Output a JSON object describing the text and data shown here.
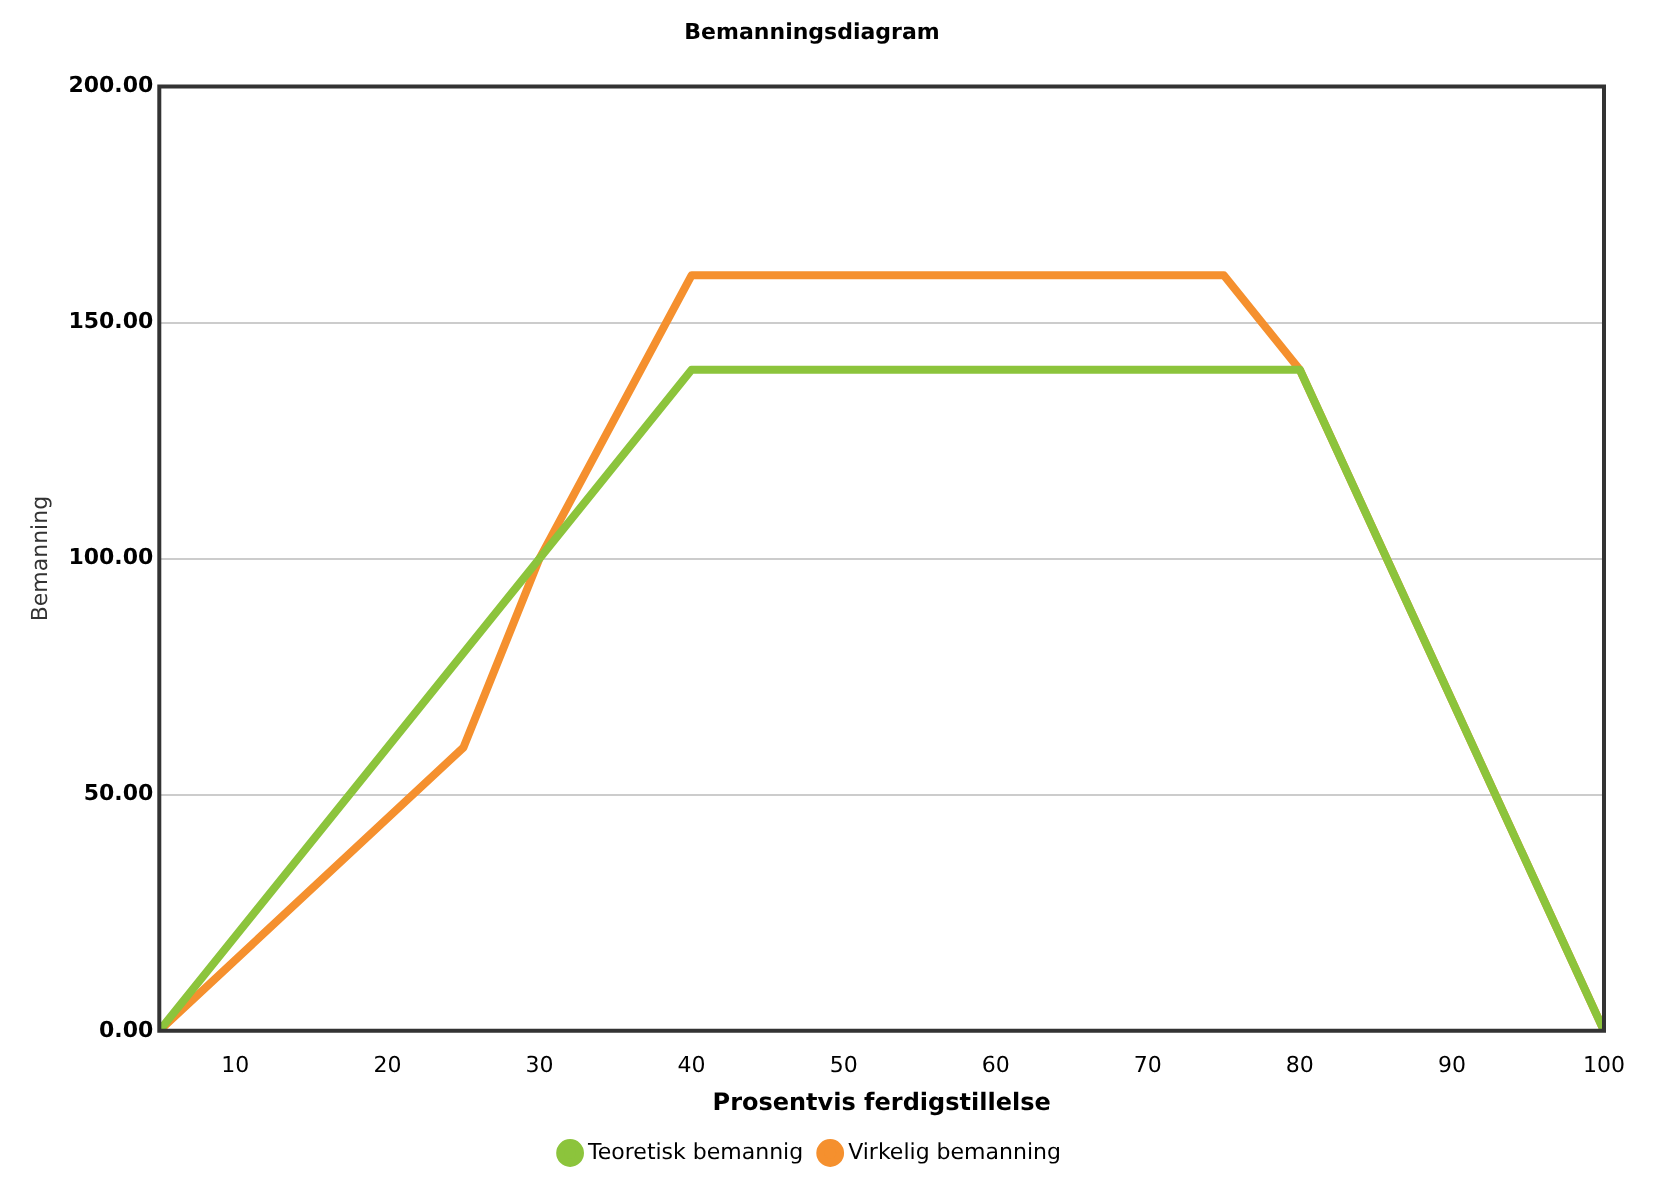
{
  "chart_data": {
    "type": "line",
    "title": "Bemanningsdiagram",
    "xlabel": "Prosentvis ferdigstillelse",
    "ylabel": "Bemanning",
    "xlim": [
      5,
      100
    ],
    "xticks": [
      10,
      20,
      30,
      40,
      50,
      60,
      70,
      80,
      90,
      100
    ],
    "ylim": [
      0,
      200
    ],
    "yticks": [
      {
        "value": 0,
        "label": "0.00"
      },
      {
        "value": 50,
        "label": "50.00"
      },
      {
        "value": 100,
        "label": "100.00"
      },
      {
        "value": 150,
        "label": "150.00"
      },
      {
        "value": 200,
        "label": "200.00"
      }
    ],
    "grid": "y",
    "legend": "bottom",
    "marker": "none",
    "line_style": "solid",
    "series": [
      {
        "name": "Teoretisk bemannig",
        "color": "#8cc43c",
        "x": [
          5,
          40,
          80,
          100
        ],
        "values": [
          0,
          140,
          140,
          0
        ]
      },
      {
        "name": "Virkelig bemanning",
        "color": "#f5902e",
        "x": [
          5,
          25,
          30,
          40,
          75,
          80,
          100
        ],
        "values": [
          0,
          60,
          100,
          160,
          160,
          140,
          0
        ]
      }
    ]
  }
}
